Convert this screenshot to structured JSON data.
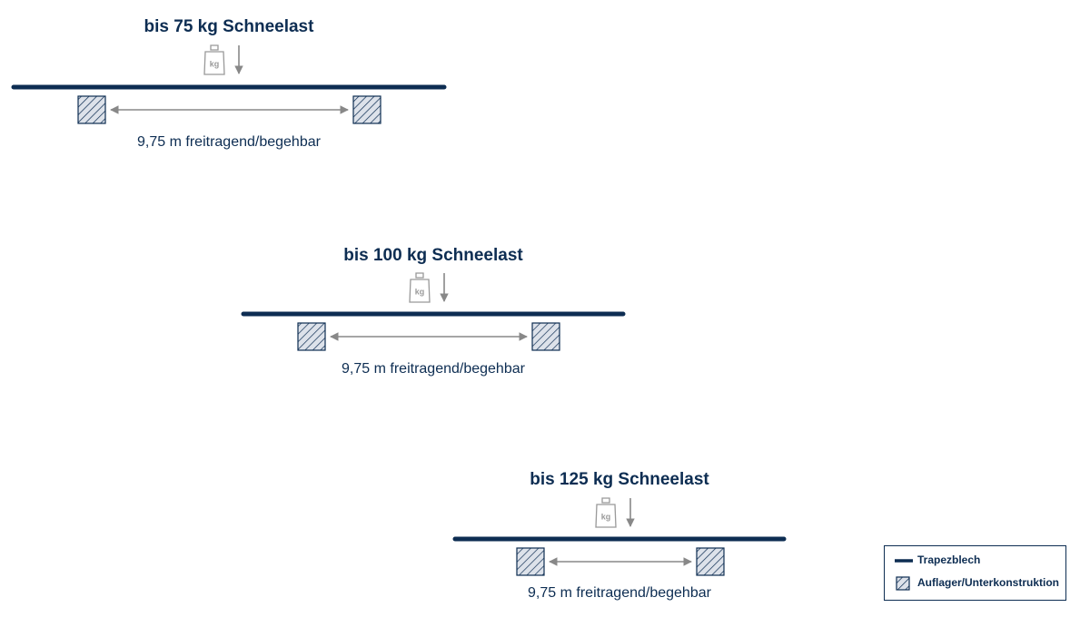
{
  "panels": [
    {
      "title": "bis 75 kg Schneelast",
      "weight_label": "kg",
      "span_label": "9,75 m freitragend/begehbar"
    },
    {
      "title": "bis 100 kg Schneelast",
      "weight_label": "kg",
      "span_label": "9,75 m freitragend/begehbar"
    },
    {
      "title": "bis 125 kg Schneelast",
      "weight_label": "kg",
      "span_label": "9,75 m freitragend/begehbar"
    }
  ],
  "legend": {
    "items": [
      "Trapezblech",
      "Auflager/Unterkonstruktion"
    ]
  }
}
